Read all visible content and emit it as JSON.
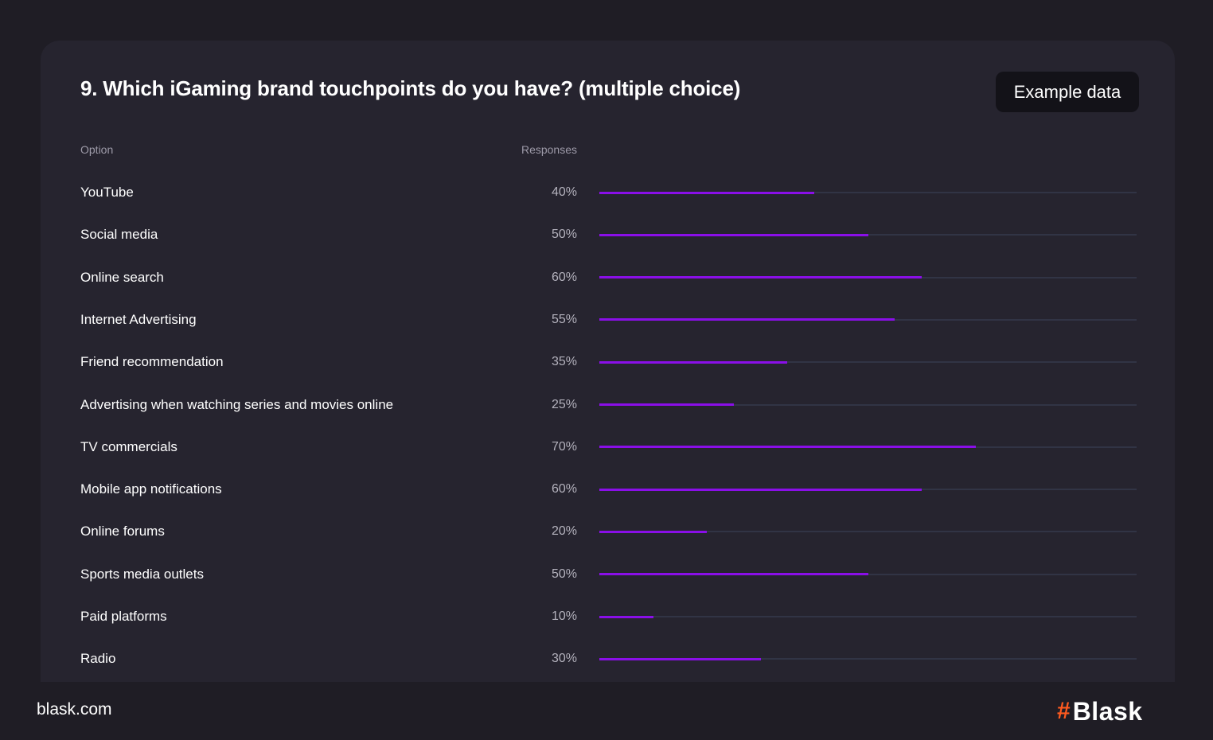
{
  "card": {
    "title": "9. Which iGaming brand touchpoints do you have? (multiple choice)",
    "badge": "Example data",
    "col_option": "Option",
    "col_responses": "Responses"
  },
  "footer": {
    "url": "blask.com",
    "logo_mark": "#",
    "logo_word": "Blask"
  },
  "colors": {
    "background": "#1f1d25",
    "card": "#26242f",
    "bar_fill": "#8a0fe8",
    "bar_track": "#313445",
    "accent": "#ff5a1f"
  },
  "chart_data": {
    "type": "bar",
    "orientation": "horizontal",
    "title": "9. Which iGaming brand touchpoints do you have? (multiple choice)",
    "xlim": [
      0,
      100
    ],
    "categories": [
      "YouTube",
      "Social media",
      "Online search",
      "Internet Advertising",
      "Friend recommendation",
      "Advertising when watching series and movies online",
      "TV commercials",
      "Mobile app notifications",
      "Online forums",
      "Sports media outlets",
      "Paid platforms",
      "Radio"
    ],
    "values": [
      40,
      50,
      60,
      55,
      35,
      25,
      70,
      60,
      20,
      50,
      10,
      30
    ],
    "value_labels": [
      "40%",
      "50%",
      "60%",
      "55%",
      "35%",
      "25%",
      "70%",
      "60%",
      "20%",
      "50%",
      "10%",
      "30%"
    ]
  }
}
